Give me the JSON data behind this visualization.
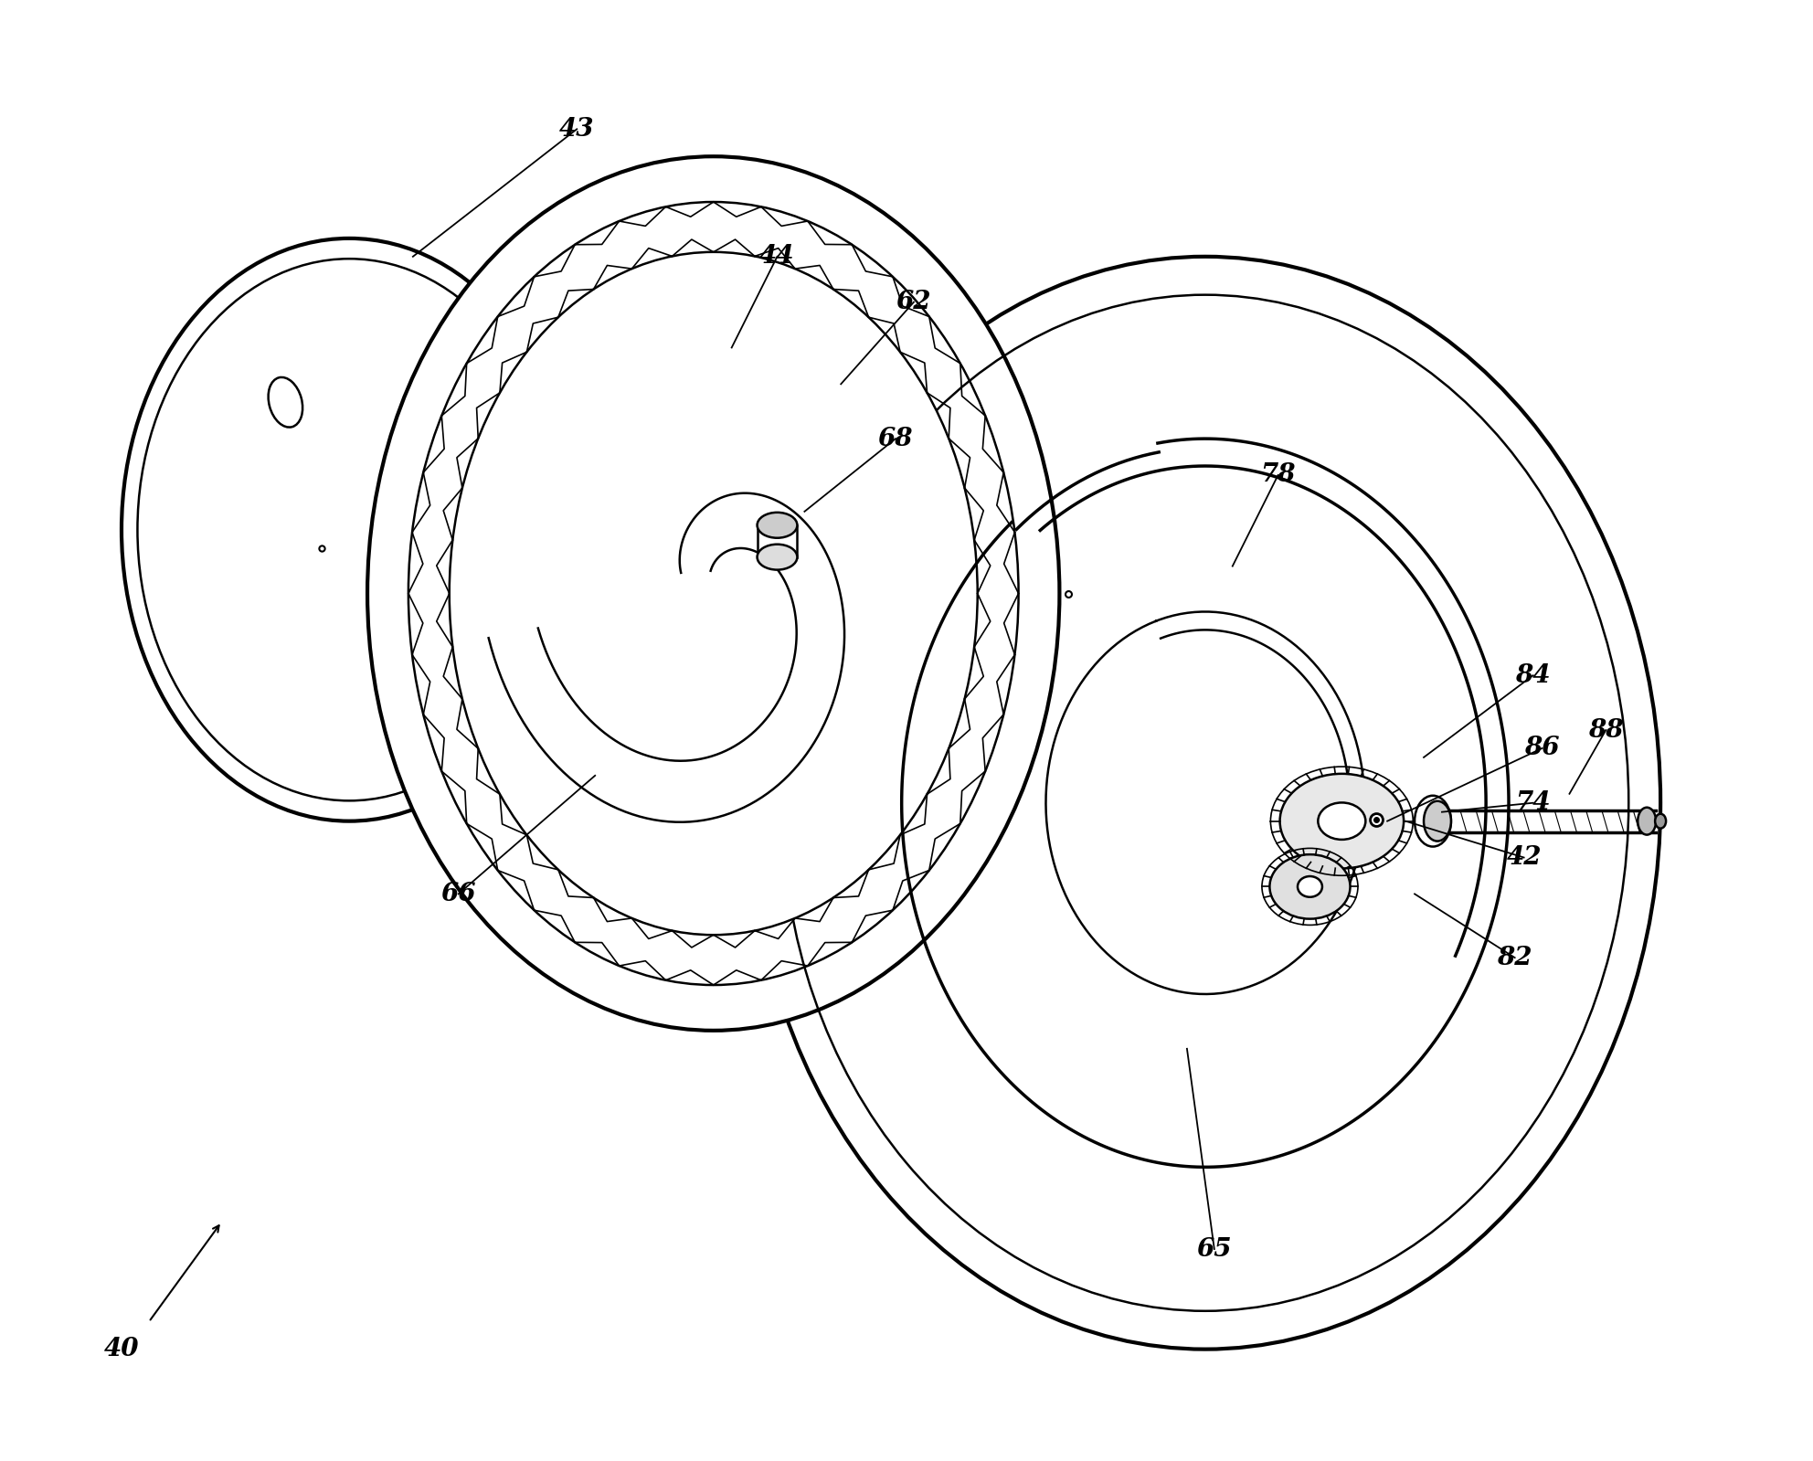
{
  "bg_color": "#ffffff",
  "line_color": "#000000",
  "fig_width": 19.84,
  "fig_height": 15.99,
  "lw_thin": 1.2,
  "lw_med": 1.8,
  "lw_thick": 2.5,
  "lw_heavy": 3.0,
  "label_fontsize": 20
}
